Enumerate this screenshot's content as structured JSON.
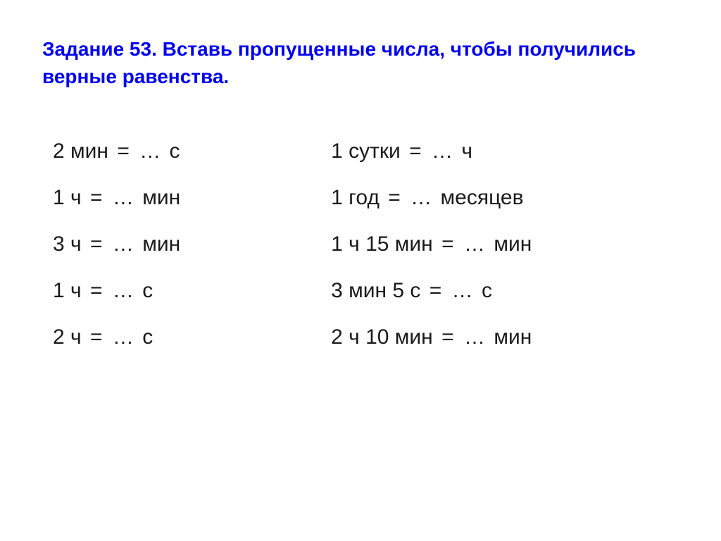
{
  "heading": "Задание 53. Вставь пропущенные числа, чтобы получились верные равенства.",
  "left": [
    {
      "lhs": "2 мин",
      "eq": "=",
      "dots": "…",
      "unit": "с"
    },
    {
      "lhs": "1 ч",
      "eq": "=",
      "dots": "…",
      "unit": "мин"
    },
    {
      "lhs": "3 ч",
      "eq": "=",
      "dots": "…",
      "unit": "мин"
    },
    {
      "lhs": "1 ч",
      "eq": "=",
      "dots": "…",
      "unit": "с"
    },
    {
      "lhs": "2 ч",
      "eq": "=",
      "dots": "…",
      "unit": "с"
    }
  ],
  "right": [
    {
      "lhs": "1 сутки",
      "eq": "=",
      "dots": "…",
      "unit": "ч"
    },
    {
      "lhs": "1 год",
      "eq": "=",
      "dots": "…",
      "unit": "месяцев"
    },
    {
      "lhs": "1 ч  15 мин",
      "eq": "=",
      "dots": "…",
      "unit": "мин"
    },
    {
      "lhs": "3 мин  5 с",
      "eq": "=",
      "dots": "…",
      "unit": "с"
    },
    {
      "lhs": "2 ч  10 мин",
      "eq": "=",
      "dots": "…",
      "unit": "мин"
    }
  ],
  "colors": {
    "heading": "#0000ee",
    "text": "#1a1a1a",
    "background": "#ffffff"
  },
  "typography": {
    "heading_fontsize": 28,
    "body_fontsize": 30,
    "font_family": "Arial"
  }
}
